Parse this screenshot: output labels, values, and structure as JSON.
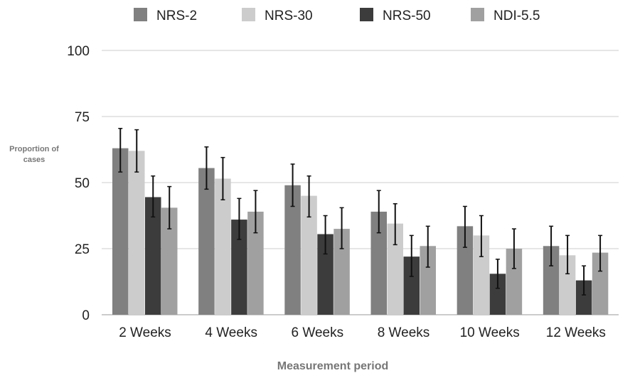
{
  "chart_data": {
    "type": "bar",
    "xlabel": "Measurement period",
    "ylabel": "Proportion of cases",
    "ylim": [
      0,
      100
    ],
    "yticks": [
      0,
      25,
      50,
      75,
      100
    ],
    "grid": true,
    "legend_position": "top",
    "categories": [
      "2 Weeks",
      "4 Weeks",
      "6 Weeks",
      "8 Weeks",
      "10 Weeks",
      "12 Weeks"
    ],
    "series": [
      {
        "name": "NRS-2",
        "color": "#808080",
        "values": [
          63,
          55.5,
          49,
          39,
          33.5,
          26
        ],
        "error_low": [
          54,
          47.5,
          41,
          31,
          25.5,
          18.5
        ],
        "error_high": [
          70.5,
          63.5,
          57,
          47,
          41,
          33.5
        ]
      },
      {
        "name": "NRS-30",
        "color": "#cccccc",
        "values": [
          62,
          51.5,
          45,
          34.5,
          30,
          22.5
        ],
        "error_low": [
          54,
          43.5,
          37,
          26.5,
          22,
          15.5
        ],
        "error_high": [
          70,
          59.5,
          52.5,
          42,
          37.5,
          30
        ]
      },
      {
        "name": "NRS-50",
        "color": "#3c3c3c",
        "values": [
          44.5,
          36,
          30.5,
          22,
          15.5,
          13
        ],
        "error_low": [
          37,
          28.5,
          23,
          14.5,
          10,
          7.5
        ],
        "error_high": [
          52.5,
          44,
          37.5,
          30,
          21,
          18.5
        ]
      },
      {
        "name": "NDI-5.5",
        "color": "#a0a0a0",
        "values": [
          40.5,
          39,
          32.5,
          26,
          25,
          23.5
        ],
        "error_low": [
          32.5,
          31,
          25,
          18,
          17.5,
          16.5
        ],
        "error_high": [
          48.5,
          47,
          40.5,
          33.5,
          32.5,
          30
        ]
      }
    ]
  }
}
